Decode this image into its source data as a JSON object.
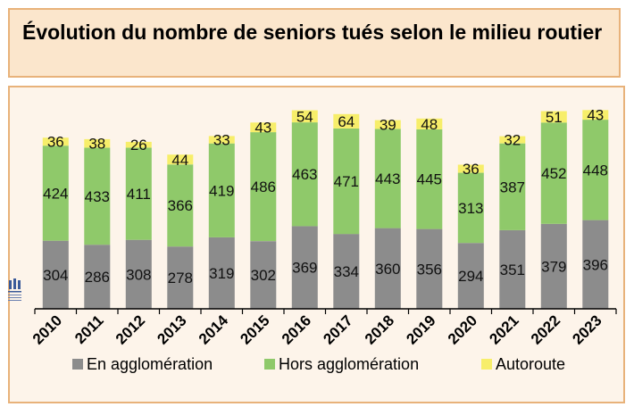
{
  "title": "Évolution du nombre de seniors tués selon le milieu routier",
  "chart_data": {
    "type": "bar",
    "stacked": true,
    "categories": [
      "2010",
      "2011",
      "2012",
      "2013",
      "2014",
      "2015",
      "2016",
      "2017",
      "2018",
      "2019",
      "2020",
      "2021",
      "2022",
      "2023"
    ],
    "series": [
      {
        "name": "En agglomération",
        "color": "#8c8c8c",
        "values": [
          304,
          286,
          308,
          278,
          319,
          302,
          369,
          334,
          360,
          356,
          294,
          351,
          379,
          396
        ]
      },
      {
        "name": "Hors agglomération",
        "color": "#8fc96a",
        "values": [
          424,
          433,
          411,
          366,
          419,
          486,
          463,
          471,
          443,
          445,
          313,
          387,
          452,
          448
        ]
      },
      {
        "name": "Autoroute",
        "color": "#f7ee6a",
        "values": [
          36,
          38,
          26,
          44,
          33,
          43,
          54,
          64,
          39,
          48,
          36,
          32,
          51,
          43
        ]
      }
    ],
    "ylim": [
      0,
      900
    ],
    "grid": false,
    "legend_position": "bottom"
  }
}
